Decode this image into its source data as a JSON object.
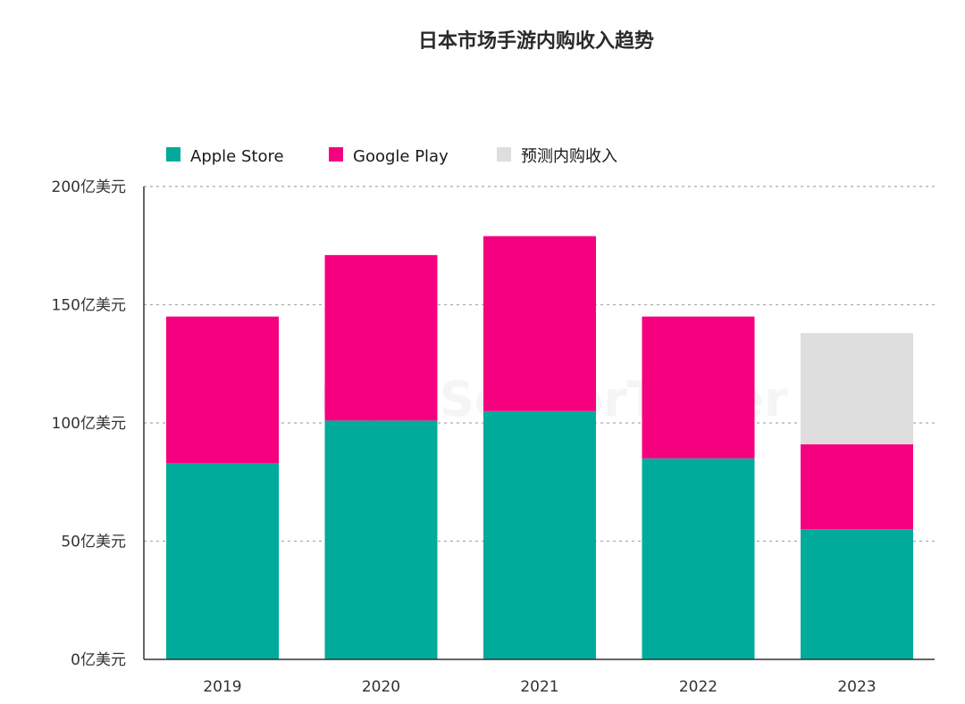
{
  "chart_data": {
    "type": "bar",
    "stacked": true,
    "title": "日本市场手游内购收入趋势",
    "categories": [
      "2019",
      "2020",
      "2021",
      "2022",
      "2023"
    ],
    "series": [
      {
        "name": "Apple Store",
        "color": "#00AB9B",
        "values": [
          83,
          101,
          105,
          85,
          55
        ]
      },
      {
        "name": "Google Play",
        "color": "#F5007F",
        "values": [
          62,
          70,
          74,
          60,
          36
        ]
      },
      {
        "name": "预测内购收入",
        "color": "#DEDEDE",
        "values": [
          0,
          0,
          0,
          0,
          47
        ]
      }
    ],
    "yticks": [
      {
        "value": 0,
        "label": "0亿美元"
      },
      {
        "value": 50,
        "label": "50亿美元"
      },
      {
        "value": 100,
        "label": "100亿美元"
      },
      {
        "value": 150,
        "label": "150亿美元"
      },
      {
        "value": 200,
        "label": "200亿美元"
      }
    ],
    "ylim": [
      0,
      200
    ],
    "grid": true,
    "legend_position": "top-left"
  },
  "watermark": "SensorTower"
}
